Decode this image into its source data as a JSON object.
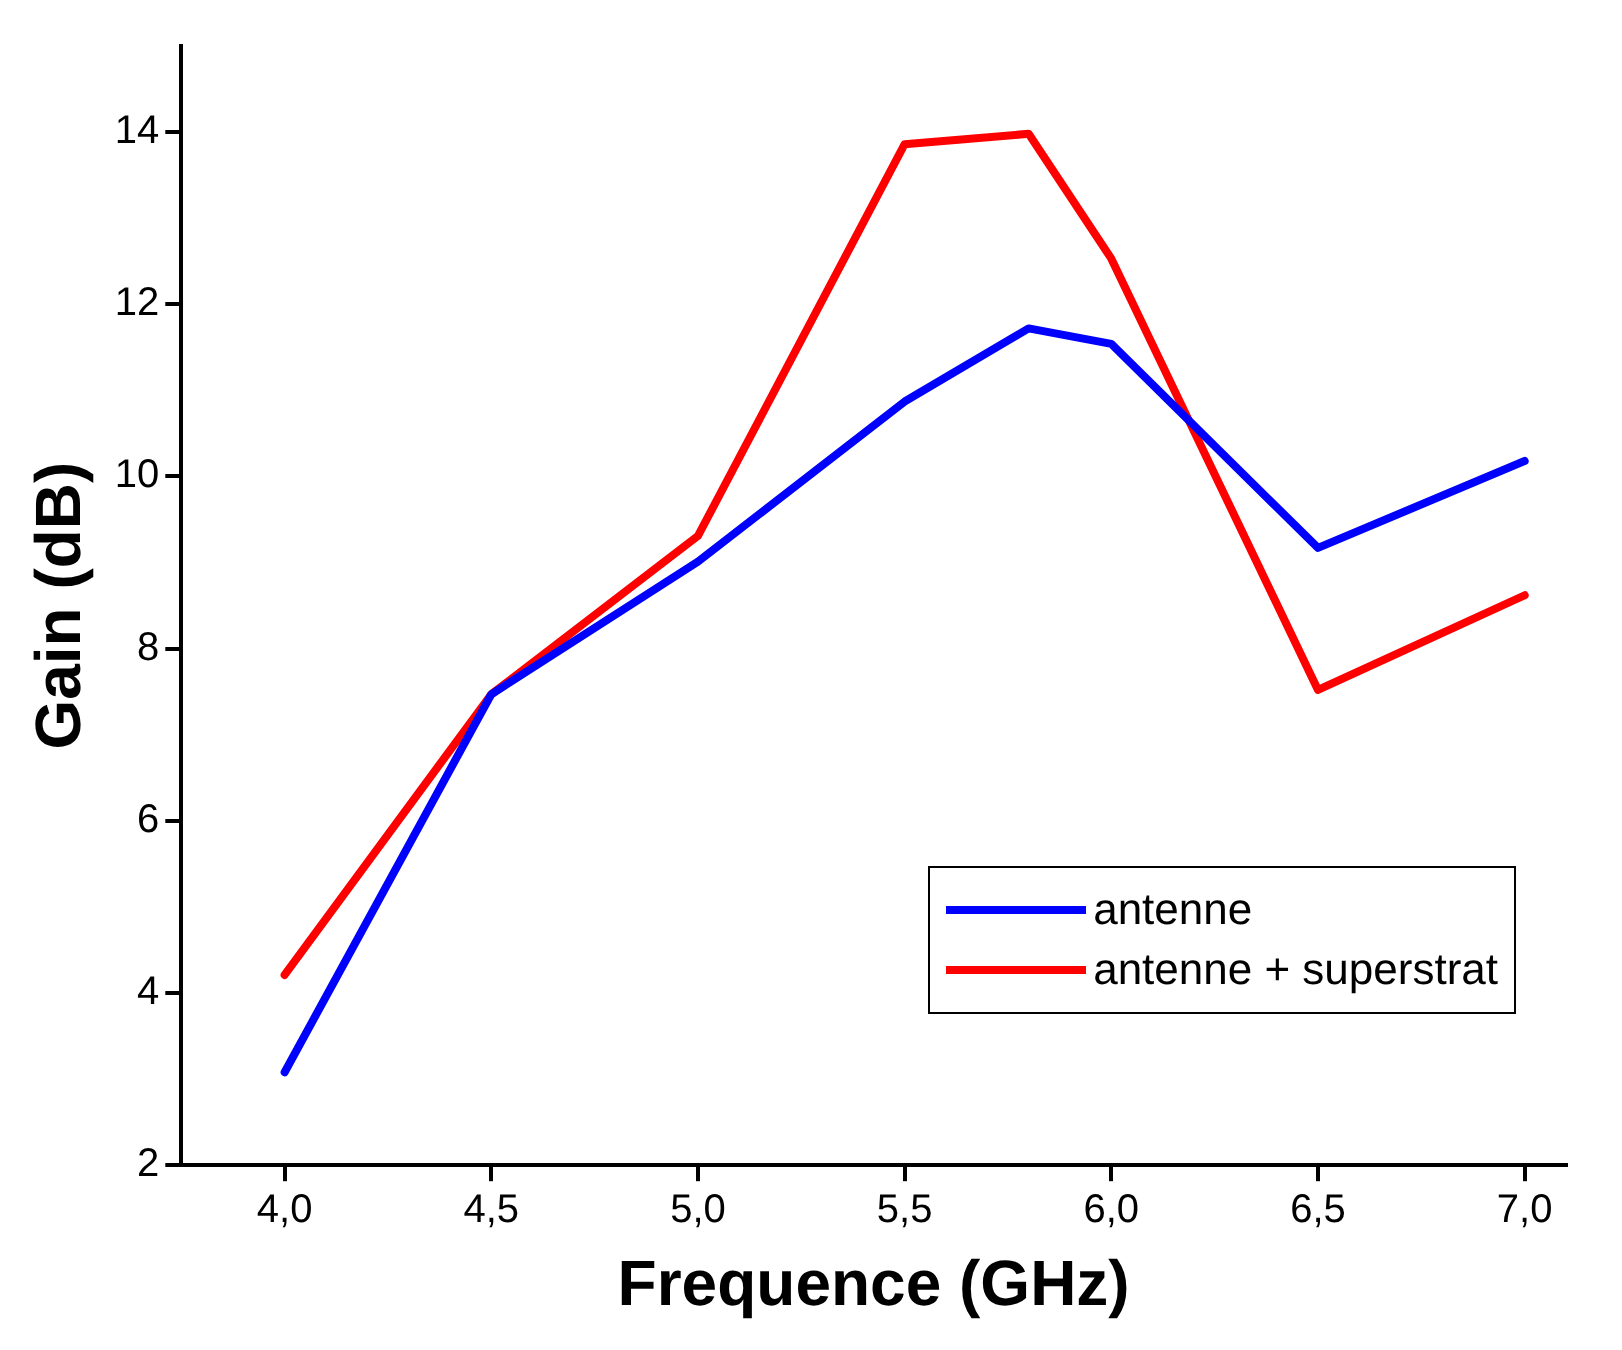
{
  "chart_data": {
    "type": "line",
    "xlabel": "Frequence (GHz)",
    "ylabel": "Gain (dB)",
    "xlim": [
      3.75,
      7.1
    ],
    "ylim": [
      2,
      15
    ],
    "xticks": [
      {
        "value": 4,
        "label": "4,0"
      },
      {
        "value": 4.5,
        "label": "4,5"
      },
      {
        "value": 5,
        "label": "5,0"
      },
      {
        "value": 5.5,
        "label": "5,5"
      },
      {
        "value": 6,
        "label": "6,0"
      },
      {
        "value": 6.5,
        "label": "6,5"
      },
      {
        "value": 7,
        "label": "7,0"
      }
    ],
    "yticks": [
      2,
      4,
      6,
      8,
      10,
      12,
      14
    ],
    "x": [
      4.0,
      4.5,
      5.0,
      5.5,
      5.8,
      6.0,
      6.5,
      7.0
    ],
    "series": [
      {
        "name": "antenne",
        "color": "#0000ff",
        "values": [
          3.08,
          7.47,
          9.01,
          10.87,
          11.72,
          11.54,
          9.17,
          10.18
        ]
      },
      {
        "name": "antenne + superstrat",
        "color": "#ff0000",
        "values": [
          4.21,
          7.47,
          9.31,
          13.86,
          13.98,
          12.53,
          7.52,
          8.62
        ]
      }
    ],
    "grid": false,
    "legend": "bottom right",
    "marker": "none",
    "line_style": "solid"
  }
}
